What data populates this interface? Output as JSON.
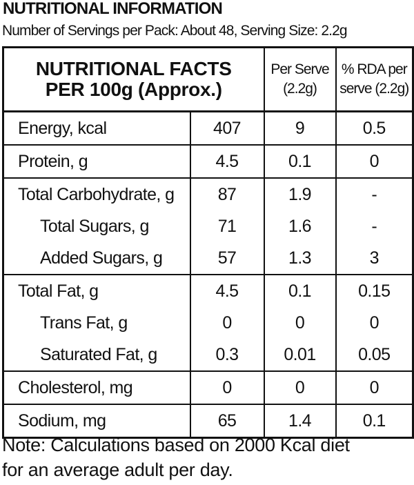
{
  "header": {
    "title": "NUTRITIONAL INFORMATION",
    "subtitle": "Number of Servings per Pack: About 48, Serving Size: 2.2g"
  },
  "table": {
    "header": [
      [
        "NUTRITIONAL FACTS",
        "PER 100g (Approx.)"
      ],
      [
        "Per Serve",
        "(2.2g)"
      ],
      [
        "% RDA per",
        "serve (2.2g)"
      ]
    ],
    "rows": [
      [
        "Energy, kcal",
        "407",
        "9",
        "0.5"
      ],
      [
        "Protein, g",
        "4.5",
        "0.1",
        "0"
      ],
      [
        "Total Carbohydrate, g",
        "87",
        "1.9",
        "-"
      ],
      [
        "Total Sugars, g",
        "71",
        "1.6",
        "-"
      ],
      [
        "Added Sugars, g",
        "57",
        "1.3",
        "3"
      ],
      [
        "Total Fat, g",
        "4.5",
        "0.1",
        "0.15"
      ],
      [
        "Trans Fat, g",
        "0",
        "0",
        "0"
      ],
      [
        "Saturated Fat, g",
        "0.3",
        "0.01",
        "0.05"
      ],
      [
        "Cholesterol, mg",
        "0",
        "0",
        "0"
      ],
      [
        "Sodium, mg",
        "65",
        "1.4",
        "0.1"
      ]
    ]
  },
  "note": [
    "Note: Calculations based on 2000 Kcal diet",
    "for an average adult per day."
  ]
}
